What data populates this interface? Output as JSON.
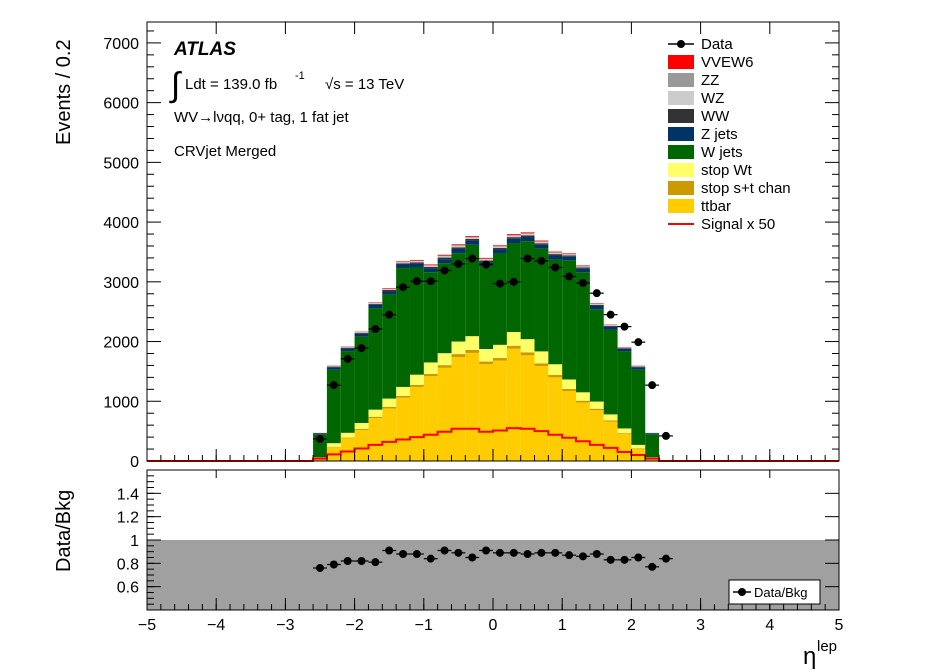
{
  "figure": {
    "atlas_label": "ATLAS",
    "lumi_prefix": "Ldt = 139.0 fb",
    "lumi_exp": "-1",
    "energy": "√s = 13 TeV",
    "selection": "WV→lνqq, 0+ tag, 1 fat jet",
    "region": "CRVjet Merged"
  },
  "chart_data": [
    {
      "type": "bar",
      "stacked": true,
      "xlabel": "η",
      "xlabel_sup": "lep",
      "ylabel": "Events / 0.2",
      "xlim": [
        -5,
        5
      ],
      "ylim": [
        0,
        7350
      ],
      "x_ticks": [
        "−5",
        "−4",
        "−3",
        "−2",
        "−1",
        "0",
        "1",
        "2",
        "3",
        "4",
        "5"
      ],
      "y_ticks": [
        "0",
        "1000",
        "2000",
        "3000",
        "4000",
        "5000",
        "6000",
        "7000"
      ],
      "legend_position": "top-right",
      "bin_edges_start": -2.6,
      "bin_width": 0.2,
      "colors": {
        "ttbar": "#ffcc00",
        "stop_st": "#cc9900",
        "stop_wt": "#ffff66",
        "w_jets": "#006600",
        "z_jets": "#003366",
        "ww": "#333333",
        "wz": "#cccccc",
        "zz": "#999999",
        "vvew6": "#ff0000",
        "signal": "#ff0000",
        "data": "#000000"
      },
      "series": [
        {
          "name": "ttbar",
          "key": "ttbar",
          "values": [
            50,
            230,
            380,
            520,
            720,
            880,
            1060,
            1240,
            1420,
            1560,
            1740,
            1810,
            1620,
            1680,
            1880,
            1770,
            1590,
            1400,
            1170,
            980,
            850,
            660,
            450,
            200,
            50,
            0
          ]
        },
        {
          "name": "stop s+t chan",
          "key": "stop_st",
          "values": [
            2,
            8,
            12,
            16,
            20,
            25,
            30,
            35,
            40,
            45,
            50,
            50,
            45,
            45,
            50,
            50,
            45,
            40,
            35,
            30,
            25,
            20,
            15,
            10,
            2,
            0
          ]
        },
        {
          "name": "stop Wt",
          "key": "stop_wt",
          "values": [
            10,
            60,
            80,
            100,
            120,
            140,
            150,
            170,
            190,
            200,
            210,
            230,
            210,
            220,
            230,
            220,
            200,
            180,
            160,
            140,
            120,
            100,
            80,
            60,
            10,
            0
          ]
        },
        {
          "name": "W jets",
          "key": "w_jets",
          "values": [
            388,
            1232,
            1368,
            1444,
            1700,
            1740,
            1990,
            1795,
            1510,
            1505,
            1480,
            1530,
            1390,
            1530,
            1490,
            1640,
            1720,
            1755,
            1995,
            2010,
            1545,
            1415,
            1285,
            1260,
            388,
            0
          ]
        },
        {
          "name": "Z jets",
          "key": "z_jets",
          "values": [
            15,
            40,
            45,
            50,
            55,
            60,
            60,
            65,
            65,
            70,
            70,
            70,
            65,
            65,
            70,
            70,
            65,
            65,
            60,
            60,
            55,
            50,
            45,
            40,
            15,
            0
          ]
        },
        {
          "name": "WW",
          "key": "ww",
          "values": [
            3,
            10,
            12,
            14,
            16,
            18,
            20,
            22,
            24,
            26,
            28,
            28,
            26,
            26,
            28,
            28,
            26,
            24,
            22,
            20,
            18,
            16,
            14,
            10,
            3,
            0
          ]
        },
        {
          "name": "WZ",
          "key": "wz",
          "values": [
            2,
            6,
            8,
            10,
            12,
            14,
            16,
            18,
            20,
            22,
            24,
            24,
            22,
            22,
            24,
            24,
            22,
            20,
            18,
            16,
            14,
            12,
            10,
            6,
            2,
            0
          ]
        },
        {
          "name": "ZZ",
          "key": "zz",
          "values": [
            1,
            3,
            4,
            5,
            6,
            7,
            8,
            9,
            10,
            11,
            12,
            12,
            11,
            11,
            12,
            12,
            11,
            10,
            9,
            8,
            7,
            6,
            5,
            3,
            1,
            0
          ]
        },
        {
          "name": "VVEW6",
          "key": "vvew6",
          "values": [
            1,
            6,
            6,
            6,
            8,
            10,
            10,
            12,
            12,
            14,
            14,
            14,
            12,
            12,
            14,
            14,
            12,
            12,
            10,
            10,
            8,
            6,
            6,
            6,
            1,
            0
          ]
        }
      ],
      "signal": {
        "name": "Signal x 50",
        "key": "signal",
        "values": [
          40,
          110,
          160,
          210,
          270,
          320,
          360,
          400,
          440,
          490,
          540,
          540,
          490,
          510,
          550,
          540,
          500,
          440,
          390,
          330,
          270,
          220,
          150,
          100,
          40,
          0
        ]
      },
      "data": {
        "name": "Data",
        "x": [
          -2.5,
          -2.3,
          -2.1,
          -1.9,
          -1.7,
          -1.5,
          -1.3,
          -1.1,
          -0.9,
          -0.7,
          -0.5,
          -0.3,
          -0.1,
          0.1,
          0.3,
          0.5,
          0.7,
          0.9,
          1.1,
          1.3,
          1.5,
          1.7,
          1.9,
          2.1,
          2.3,
          2.5
        ],
        "values": [
          370,
          1270,
          1710,
          1890,
          2210,
          2450,
          2910,
          3010,
          3010,
          3190,
          3300,
          3390,
          3290,
          2970,
          3000,
          3390,
          3350,
          3240,
          3090,
          2980,
          2810,
          2450,
          2250,
          1990,
          1270,
          420
        ]
      }
    },
    {
      "type": "scatter",
      "xlabel": "η",
      "xlabel_sup": "lep",
      "ylabel": "Data/Bkg",
      "xlim": [
        -5,
        5
      ],
      "ylim": [
        0.4,
        1.6
      ],
      "x_ticks": [
        "−5",
        "−4",
        "−3",
        "−2",
        "−1",
        "0",
        "1",
        "2",
        "3",
        "4",
        "5"
      ],
      "y_ticks": [
        "0.6",
        "0.8",
        "1",
        "1.2",
        "1.4"
      ],
      "legend_position": "bottom-right",
      "band_range": [
        0.4,
        1.0
      ],
      "band_color": "#a0a0a0",
      "series": [
        {
          "name": "Data/Bkg",
          "x": [
            -2.5,
            -2.3,
            -2.1,
            -1.9,
            -1.7,
            -1.5,
            -1.3,
            -1.1,
            -0.9,
            -0.7,
            -0.5,
            -0.3,
            -0.1,
            0.1,
            0.3,
            0.5,
            0.7,
            0.9,
            1.1,
            1.3,
            1.5,
            1.7,
            1.9,
            2.1,
            2.3,
            2.5
          ],
          "values": [
            0.76,
            0.79,
            0.82,
            0.82,
            0.81,
            0.91,
            0.88,
            0.88,
            0.84,
            0.91,
            0.89,
            0.85,
            0.91,
            0.89,
            0.89,
            0.88,
            0.89,
            0.89,
            0.87,
            0.86,
            0.88,
            0.83,
            0.83,
            0.85,
            0.77,
            0.84
          ]
        }
      ]
    }
  ]
}
